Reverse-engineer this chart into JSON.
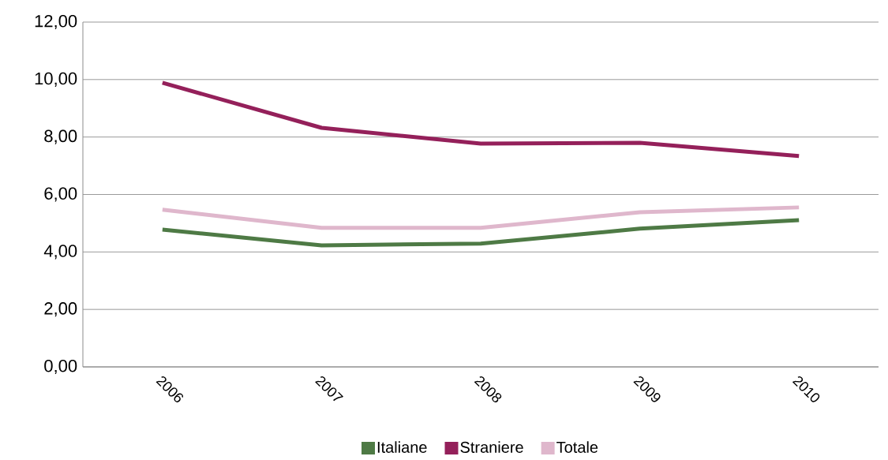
{
  "chart_data": {
    "type": "line",
    "categories": [
      "2006",
      "2007",
      "2008",
      "2009",
      "2010"
    ],
    "series": [
      {
        "name": "Italiane",
        "color": "#4e7a45",
        "values": [
          4.78,
          4.23,
          4.29,
          4.81,
          5.11
        ]
      },
      {
        "name": "Straniere",
        "color": "#94205a",
        "values": [
          9.89,
          8.32,
          7.77,
          7.8,
          7.34
        ]
      },
      {
        "name": "Totale",
        "color": "#dfb7cc",
        "values": [
          5.47,
          4.84,
          4.84,
          5.38,
          5.55
        ]
      }
    ],
    "ylim": [
      0,
      12
    ],
    "yticks": [
      {
        "value": 0,
        "label": "0,00"
      },
      {
        "value": 2,
        "label": "2,00"
      },
      {
        "value": 4,
        "label": "4,00"
      },
      {
        "value": 6,
        "label": "6,00"
      },
      {
        "value": 8,
        "label": "8,00"
      },
      {
        "value": 10,
        "label": "10,00"
      },
      {
        "value": 12,
        "label": "12,00"
      }
    ],
    "grid": "y",
    "legend": "bottom",
    "marker": "none",
    "line_style": "solid"
  }
}
